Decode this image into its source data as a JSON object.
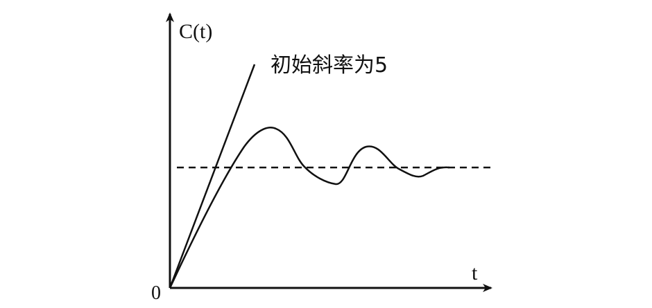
{
  "diagram": {
    "y_axis_label": "C(t)",
    "x_axis_label": "t",
    "origin_label": "0",
    "annotation": "初始斜率为5"
  },
  "colors": {
    "ink": "#111111",
    "background": "#ffffff"
  }
}
